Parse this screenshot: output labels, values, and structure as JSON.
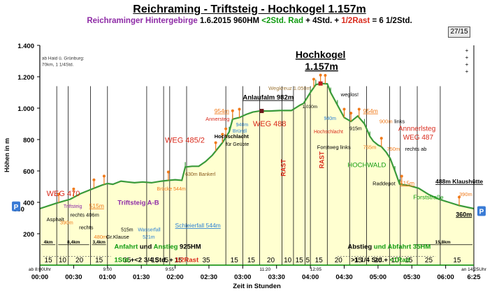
{
  "header": {
    "title": "Reichraming - Triftsteig - Hochkogel 1.157m",
    "sub_region": "Reichraminger Hintergebirge",
    "sub_date": "1.6.2015",
    "sub_hm": "960HM",
    "sub_rad": "<2Std. Rad",
    "sub_plus1": " + 4Std. + ",
    "sub_rast": "1/2Rast",
    "sub_total": " = 6 1/2Std.",
    "page_indicator": "27/15"
  },
  "chart_data": {
    "type": "area",
    "title": "Reichraming - Triftsteig - Hochkogel 1.157m",
    "xlabel": "Zeit in Stunden",
    "ylabel": "Höhen in m",
    "ylim": [
      0,
      1400
    ],
    "xlim": [
      0,
      6.4167
    ],
    "grid": false,
    "x_ticks": [
      0,
      0.5,
      1,
      1.5,
      2,
      2.5,
      3,
      3.5,
      4,
      4.5,
      5,
      5.5,
      6
    ],
    "x_tick_labels": [
      "00:00",
      "00:30",
      "01:00",
      "01:30",
      "02:00",
      "02:30",
      "03:00",
      "03:30",
      "04:00",
      "04:30",
      "05:00",
      "05:30",
      "06:00"
    ],
    "x_end_label": "6:25",
    "y_ticks": [
      200,
      400,
      600,
      800,
      1000,
      1200,
      1400
    ],
    "y_tick_labels": [
      "200",
      "400",
      "600",
      "800",
      "1.000",
      "1.200",
      "1.400"
    ],
    "y_extra_label": "360",
    "profile": [
      [
        0,
        360
      ],
      [
        0.25,
        395
      ],
      [
        0.45,
        420
      ],
      [
        0.6,
        455
      ],
      [
        0.8,
        490
      ],
      [
        0.92,
        510
      ],
      [
        1.0,
        520
      ],
      [
        1.08,
        515
      ],
      [
        1.2,
        535
      ],
      [
        1.3,
        530
      ],
      [
        1.4,
        525
      ],
      [
        1.52,
        530
      ],
      [
        1.65,
        525
      ],
      [
        1.8,
        535
      ],
      [
        1.9,
        540
      ],
      [
        2.0,
        544
      ],
      [
        2.1,
        540
      ],
      [
        2.15,
        625
      ],
      [
        2.25,
        630
      ],
      [
        2.35,
        630
      ],
      [
        2.45,
        660
      ],
      [
        2.55,
        700
      ],
      [
        2.7,
        780
      ],
      [
        2.8,
        850
      ],
      [
        2.85,
        930
      ],
      [
        2.95,
        940
      ],
      [
        3.05,
        960
      ],
      [
        3.15,
        975
      ],
      [
        3.25,
        982
      ],
      [
        3.4,
        982
      ],
      [
        3.55,
        985
      ],
      [
        3.72,
        985
      ],
      [
        3.85,
        1020
      ],
      [
        3.9,
        1030
      ],
      [
        4.0,
        1100
      ],
      [
        4.08,
        1150
      ],
      [
        4.15,
        1157
      ],
      [
        4.25,
        1155
      ],
      [
        4.3,
        1100
      ],
      [
        4.4,
        1020
      ],
      [
        4.5,
        940
      ],
      [
        4.6,
        915
      ],
      [
        4.7,
        950
      ],
      [
        4.8,
        900
      ],
      [
        4.88,
        820
      ],
      [
        4.93,
        790
      ],
      [
        5.0,
        765
      ],
      [
        5.05,
        755
      ],
      [
        5.12,
        720
      ],
      [
        5.18,
        680
      ],
      [
        5.25,
        600
      ],
      [
        5.32,
        515
      ],
      [
        5.45,
        508
      ],
      [
        5.6,
        490
      ],
      [
        5.75,
        450
      ],
      [
        5.9,
        420
      ],
      [
        6.05,
        400
      ],
      [
        6.2,
        380
      ],
      [
        6.4167,
        360
      ]
    ],
    "time_segments": [
      {
        "from": 0,
        "to": 0.25,
        "label": "15"
      },
      {
        "from": 0.25,
        "to": 0.42,
        "label": "10"
      },
      {
        "from": 0.42,
        "to": 0.75,
        "label": "20"
      },
      {
        "from": 0.75,
        "to": 1.0,
        "label": "15"
      },
      {
        "from": 1.0,
        "to": 1.58,
        "label": "35"
      },
      {
        "from": 1.58,
        "to": 1.83,
        "label": "15"
      },
      {
        "from": 1.83,
        "to": 1.92,
        "label": "5"
      },
      {
        "from": 1.92,
        "to": 2.17,
        "label": "15"
      },
      {
        "from": 2.17,
        "to": 2.75,
        "label": "35"
      },
      {
        "from": 2.75,
        "to": 3.0,
        "label": "15"
      },
      {
        "from": 3.0,
        "to": 3.25,
        "label": "15"
      },
      {
        "from": 3.25,
        "to": 3.58,
        "label": "20"
      },
      {
        "from": 3.58,
        "to": 3.75,
        "label": "10"
      },
      {
        "from": 3.75,
        "to": 3.92,
        "label": "15"
      },
      {
        "from": 3.92,
        "to": 4.0,
        "label": "5"
      },
      {
        "from": 4.0,
        "to": 4.25,
        "label": "15"
      },
      {
        "from": 4.25,
        "to": 4.58,
        "label": "20"
      },
      {
        "from": 4.58,
        "to": 4.83,
        "label": "15"
      },
      {
        "from": 4.83,
        "to": 5.17,
        "label": "20"
      },
      {
        "from": 5.17,
        "to": 5.33,
        "label": "10"
      },
      {
        "from": 5.33,
        "to": 5.58,
        "label": "15"
      },
      {
        "from": 5.58,
        "to": 5.92,
        "label": "25"
      },
      {
        "from": 5.92,
        "to": 6.4167,
        "label": "15"
      }
    ],
    "segment_dividers": [
      0.25,
      0.42,
      0.75,
      1.0,
      1.58,
      1.83,
      1.92,
      2.17,
      2.75,
      3.0,
      3.25,
      3.58,
      3.75,
      3.92,
      4.0,
      4.25,
      4.58,
      4.83,
      5.17,
      5.33,
      5.58,
      5.92
    ],
    "time_notes": [
      {
        "x": 0,
        "label": "ab 8:00Uhr"
      },
      {
        "x": 1.0,
        "label": "9:00"
      },
      {
        "x": 1.92,
        "label": "9:55"
      },
      {
        "x": 3.33,
        "label": "11:20"
      },
      {
        "x": 4.08,
        "label": "12:05"
      },
      {
        "x": 6.4167,
        "label": "an 14:25Uhr"
      }
    ],
    "rad_segments": [
      {
        "from": 0,
        "to": 0.25,
        "label": "4km"
      },
      {
        "from": 0.25,
        "to": 0.75,
        "label": "8,4km"
      },
      {
        "from": 0.75,
        "to": 1.0,
        "label": "3,4km"
      },
      {
        "from": 5.5,
        "to": 6.4167,
        "label": "15,8km"
      }
    ],
    "annotations": [
      {
        "x": 0.03,
        "y": 1310,
        "text": "ab Haid ü. Grünburg:",
        "color": "#333333",
        "size": 6.5,
        "anchor": "start"
      },
      {
        "x": 0.03,
        "y": 1270,
        "text": "70km, 1 1/4Std.",
        "color": "#333333",
        "size": 6.5,
        "anchor": "start"
      },
      {
        "x": 0.1,
        "y": 440,
        "text": "WEG 470",
        "color": "#d92a1c",
        "size": 11,
        "anchor": "start"
      },
      {
        "x": 0.35,
        "y": 365,
        "text": "Triftsteig",
        "color": "#8e2ba6",
        "size": 7,
        "anchor": "start"
      },
      {
        "x": 0.73,
        "y": 365,
        "text": "515m",
        "color": "#f07a1a",
        "size": 8.5,
        "anchor": "start",
        "underline": true
      },
      {
        "x": 1.15,
        "y": 385,
        "text": "Triftsteig A-B",
        "color": "#8e2ba6",
        "size": 9.5,
        "anchor": "start",
        "bold": true
      },
      {
        "x": 0.1,
        "y": 280,
        "text": "Asphalt",
        "color": "#000000",
        "size": 7.5,
        "anchor": "start"
      },
      {
        "x": 0.45,
        "y": 310,
        "text": "rechts 406m",
        "color": "#000000",
        "size": 7.5,
        "anchor": "start"
      },
      {
        "x": 0.3,
        "y": 260,
        "text": "390m",
        "color": "#f07a1a",
        "size": 7.5,
        "anchor": "start"
      },
      {
        "x": 0.58,
        "y": 230,
        "text": "rechts",
        "color": "#000000",
        "size": 7.5,
        "anchor": "start"
      },
      {
        "x": 0.8,
        "y": 170,
        "text": "480m",
        "color": "#f07a1a",
        "size": 7.5,
        "anchor": "start"
      },
      {
        "x": 0.98,
        "y": 170,
        "text": "Gr.Klause",
        "color": "#000000",
        "size": 7.5,
        "anchor": "start"
      },
      {
        "x": 1.2,
        "y": 215,
        "text": "515m",
        "color": "#000000",
        "size": 7,
        "anchor": "start"
      },
      {
        "x": 1.45,
        "y": 215,
        "text": "Wasserfall",
        "color": "#2a7fd4",
        "size": 7,
        "anchor": "start"
      },
      {
        "x": 1.52,
        "y": 170,
        "text": "521m",
        "color": "#2a7fd4",
        "size": 7,
        "anchor": "start"
      },
      {
        "x": 1.73,
        "y": 475,
        "text": "Brücke 544m",
        "color": "#f07a1a",
        "size": 7,
        "anchor": "start"
      },
      {
        "x": 2.0,
        "y": 240,
        "text": "Schleierfall 544m",
        "color": "#2a7fd4",
        "size": 8.5,
        "anchor": "start",
        "underline": true
      },
      {
        "x": 1.85,
        "y": 780,
        "text": "WEG 485/2",
        "color": "#d92a1c",
        "size": 11,
        "anchor": "start"
      },
      {
        "x": 2.15,
        "y": 570,
        "text": "630m Bankerl",
        "color": "#8a5a1c",
        "size": 7,
        "anchor": "start"
      },
      {
        "x": 2.58,
        "y": 810,
        "text": "Hochschlacht",
        "color": "#000000",
        "size": 7.5,
        "anchor": "start",
        "bold": true
      },
      {
        "x": 2.75,
        "y": 760,
        "text": "für Geübte",
        "color": "#000000",
        "size": 7,
        "anchor": "start"
      },
      {
        "x": 2.45,
        "y": 920,
        "text": "Annersteg",
        "color": "#d92a1c",
        "size": 7.5,
        "anchor": "start"
      },
      {
        "x": 2.58,
        "y": 970,
        "text": "954m",
        "color": "#f07a1a",
        "size": 8.5,
        "anchor": "start",
        "underline": true
      },
      {
        "x": 2.9,
        "y": 885,
        "text": "940m",
        "color": "#2a7fd4",
        "size": 7,
        "anchor": "start"
      },
      {
        "x": 2.85,
        "y": 845,
        "text": "Bründl",
        "color": "#2a7fd4",
        "size": 7,
        "anchor": "start"
      },
      {
        "x": 3.0,
        "y": 1055,
        "text": "Anlaufalm 982m",
        "color": "#000000",
        "size": 9.5,
        "anchor": "start",
        "bold": true,
        "underline": true
      },
      {
        "x": 3.15,
        "y": 885,
        "text": "WEG 488",
        "color": "#d92a1c",
        "size": 11,
        "anchor": "start"
      },
      {
        "x": 3.38,
        "y": 1115,
        "text": "Wegkreuz 1.050m",
        "color": "#a0793a",
        "size": 7.5,
        "anchor": "start"
      },
      {
        "x": 3.88,
        "y": 1000,
        "text": "1.030m",
        "color": "#000000",
        "size": 6.5,
        "anchor": "start"
      },
      {
        "x": 3.78,
        "y": 1320,
        "text": "Hochkogel",
        "color": "#000000",
        "size": 14,
        "anchor": "start",
        "bold": true,
        "underline": true
      },
      {
        "x": 3.92,
        "y": 1245,
        "text": "1.157m",
        "color": "#000000",
        "size": 14,
        "anchor": "start",
        "bold": true,
        "underline": true
      },
      {
        "x": 4.45,
        "y": 1075,
        "text": "weglos!",
        "color": "#000000",
        "size": 7.5,
        "anchor": "start"
      },
      {
        "x": 4.2,
        "y": 925,
        "text": "940m",
        "color": "#2a7fd4",
        "size": 7,
        "anchor": "start"
      },
      {
        "x": 4.05,
        "y": 840,
        "text": "Hochschlacht",
        "color": "#d92a1c",
        "size": 7,
        "anchor": "start"
      },
      {
        "x": 4.58,
        "y": 860,
        "text": "915m",
        "color": "#000000",
        "size": 7,
        "anchor": "start"
      },
      {
        "x": 4.78,
        "y": 970,
        "text": "954m",
        "color": "#f07a1a",
        "size": 8.5,
        "anchor": "start",
        "underline": true
      },
      {
        "x": 5.02,
        "y": 905,
        "text": "900m",
        "color": "#f07a1a",
        "size": 7.5,
        "anchor": "start"
      },
      {
        "x": 5.24,
        "y": 905,
        "text": "links",
        "color": "#000000",
        "size": 7.5,
        "anchor": "start"
      },
      {
        "x": 5.3,
        "y": 855,
        "text": "Annnerlsteg",
        "color": "#d92a1c",
        "size": 10,
        "anchor": "start"
      },
      {
        "x": 5.37,
        "y": 800,
        "text": "WEG 487",
        "color": "#d92a1c",
        "size": 10,
        "anchor": "start"
      },
      {
        "x": 4.1,
        "y": 740,
        "text": "Forstweg links",
        "color": "#000000",
        "size": 7.5,
        "anchor": "start"
      },
      {
        "x": 4.78,
        "y": 740,
        "text": "755m",
        "color": "#f07a1a",
        "size": 7.5,
        "anchor": "start"
      },
      {
        "x": 5.13,
        "y": 730,
        "text": "750m",
        "color": "#f07a1a",
        "size": 7.5,
        "anchor": "start"
      },
      {
        "x": 5.4,
        "y": 730,
        "text": "rechts ab",
        "color": "#000000",
        "size": 7.5,
        "anchor": "start"
      },
      {
        "x": 4.55,
        "y": 625,
        "text": "HOCHWALD",
        "color": "#119b11",
        "size": 9.5,
        "anchor": "start"
      },
      {
        "x": 4.92,
        "y": 510,
        "text": "Raddepot",
        "color": "#000000",
        "size": 7.5,
        "anchor": "start"
      },
      {
        "x": 5.32,
        "y": 510,
        "text": "515m",
        "color": "#f07a1a",
        "size": 8.5,
        "anchor": "start",
        "underline": true
      },
      {
        "x": 5.85,
        "y": 520,
        "text": "488m Klaushütte",
        "color": "#000000",
        "size": 8.5,
        "anchor": "start",
        "bold": true,
        "underline": true
      },
      {
        "x": 5.52,
        "y": 420,
        "text": "Forststraße",
        "color": "#119b11",
        "size": 8.5,
        "anchor": "start"
      },
      {
        "x": 6.2,
        "y": 440,
        "text": "390m",
        "color": "#f07a1a",
        "size": 7.5,
        "anchor": "start"
      },
      {
        "x": 6.15,
        "y": 310,
        "text": "360m",
        "color": "#000000",
        "size": 9,
        "anchor": "start",
        "bold": true,
        "underline": true
      }
    ],
    "rast_labels": [
      {
        "x": 3.63,
        "y": 620,
        "text": "RAST"
      },
      {
        "x": 4.2,
        "y": 670,
        "text": "RAST"
      }
    ],
    "info_left": {
      "line1_a": "Anfahrt",
      "line1_b": " und ",
      "line1_c": "Anstieg",
      "line1_d": " 925HM",
      "line2_a": "1Std.",
      "line2_b": "+<2 3/4 Std. + ",
      "line2_c": "1/2Rast"
    },
    "info_right": {
      "line1_a": "Abstieg",
      "line1_b": " und ",
      "line1_c": "Abfahrt",
      "line1_d": " 35HM",
      "line2_a": ">1 1/4 Std.+ ",
      "line2_b": "<1Rad"
    },
    "parking_label": "P",
    "flag_markers": [
      0.28,
      0.5,
      0.8,
      0.95,
      1.9,
      2.6,
      2.7,
      2.75,
      2.85,
      2.95,
      4.05,
      4.15,
      4.22,
      4.5,
      4.6,
      4.72,
      5.05,
      5.35,
      6.2
    ],
    "colors": {
      "fill": "#ffffd0",
      "line": "#3a9a3a",
      "grid_dark": "#000000",
      "accent_green": "#119b11"
    }
  }
}
